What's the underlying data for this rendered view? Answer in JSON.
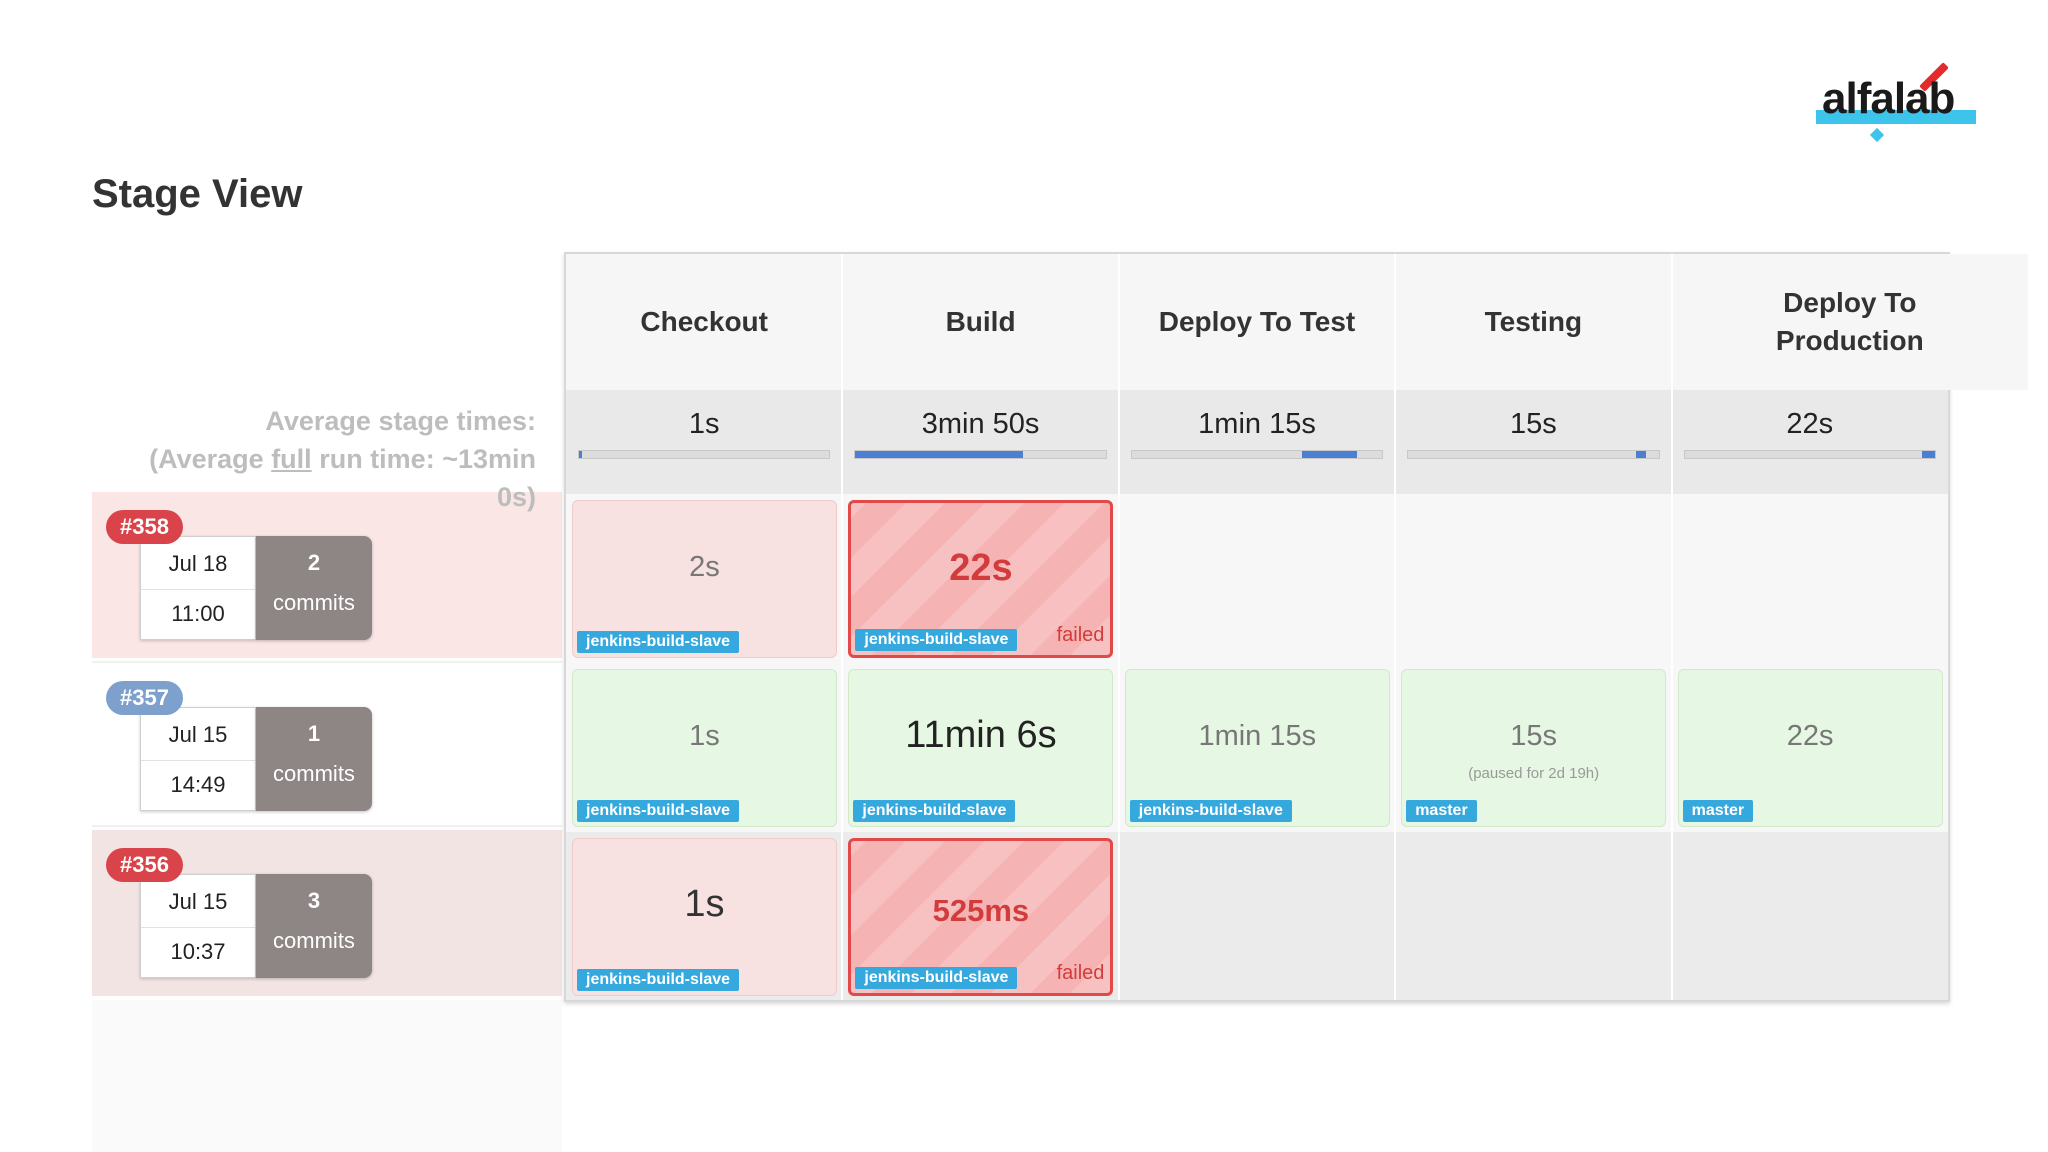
{
  "brand": {
    "name": "alfalab"
  },
  "page": {
    "title": "Stage View"
  },
  "average": {
    "line1": "Average stage times:",
    "line2_pre": "(Average ",
    "line2_link": "full",
    "line2_post": " run time: ~13min 0s)"
  },
  "stages": [
    {
      "name": "Checkout",
      "avg": "1s",
      "progress_start": 0.0,
      "progress_end": 0.01
    },
    {
      "name": "Build",
      "avg": "3min 50s",
      "progress_start": 0.0,
      "progress_end": 0.67
    },
    {
      "name": "Deploy To Test",
      "avg": "1min 15s",
      "progress_start": 0.68,
      "progress_end": 0.9
    },
    {
      "name": "Testing",
      "avg": "15s",
      "progress_start": 0.91,
      "progress_end": 0.95
    },
    {
      "name": "Deploy To Production",
      "avg": "22s",
      "progress_start": 0.95,
      "progress_end": 1.0
    }
  ],
  "builds": [
    {
      "id": "#358",
      "date": "Jul 18",
      "time": "11:00",
      "commits_count": "2",
      "commits_label": "commits",
      "status": "failed",
      "cells": [
        {
          "time": "2s",
          "agent": "jenkins-build-slave",
          "state": "pink"
        },
        {
          "time": "22s",
          "agent": "jenkins-build-slave",
          "state": "fail",
          "failed_label": "failed"
        },
        {
          "state": "empty"
        },
        {
          "state": "empty"
        },
        {
          "state": "empty"
        }
      ]
    },
    {
      "id": "#357",
      "date": "Jul 15",
      "time": "14:49",
      "commits_count": "1",
      "commits_label": "commits",
      "status": "success",
      "cells": [
        {
          "time": "1s",
          "agent": "jenkins-build-slave",
          "state": "green"
        },
        {
          "time": "11min 6s",
          "agent": "jenkins-build-slave",
          "state": "green"
        },
        {
          "time": "1min 15s",
          "agent": "jenkins-build-slave",
          "state": "green"
        },
        {
          "time": "15s",
          "note": "(paused for 2d 19h)",
          "agent": "master",
          "state": "green"
        },
        {
          "time": "22s",
          "agent": "master",
          "state": "green"
        }
      ]
    },
    {
      "id": "#356",
      "date": "Jul 15",
      "time": "10:37",
      "commits_count": "3",
      "commits_label": "commits",
      "status": "failed",
      "cells": [
        {
          "time": "1s",
          "agent": "jenkins-build-slave",
          "state": "pink"
        },
        {
          "time": "525ms",
          "agent": "jenkins-build-slave",
          "state": "fail",
          "failed_label": "failed"
        },
        {
          "state": "empty"
        },
        {
          "state": "empty"
        },
        {
          "state": "empty"
        }
      ]
    }
  ],
  "colors": {
    "fail": "#d9434a",
    "running_badge": "#7ea0cd",
    "agent": "#35a8de",
    "progress": "#4a7fd4"
  }
}
